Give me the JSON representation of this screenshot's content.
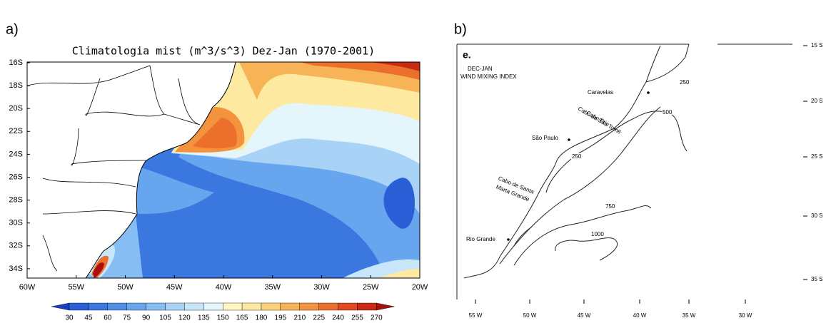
{
  "panel_a": {
    "label": "a)",
    "title": "Climatologia mist (m^3/s^3) Dez-Jan (1970-2001)",
    "lat_labels": [
      "16S",
      "18S",
      "20S",
      "22S",
      "24S",
      "26S",
      "28S",
      "30S",
      "32S",
      "34S"
    ],
    "lon_labels": [
      "60W",
      "55W",
      "50W",
      "45W",
      "40W",
      "35W",
      "30W",
      "25W",
      "20W"
    ],
    "colorbar": {
      "labels": [
        30,
        45,
        60,
        75,
        90,
        105,
        120,
        135,
        150,
        165,
        180,
        195,
        210,
        225,
        240,
        255,
        270
      ],
      "colors": [
        "#1a3fc4",
        "#2a5fd8",
        "#3a78e0",
        "#4f8fe6",
        "#67a6ee",
        "#86bdf2",
        "#a8d3f6",
        "#c8e6fa",
        "#e4f5fc",
        "#fff8c4",
        "#fde9a0",
        "#fbd27a",
        "#f7b457",
        "#f3933e",
        "#ec6f2c",
        "#e04a1e",
        "#c92a14",
        "#a8100c"
      ]
    }
  },
  "panel_b": {
    "label": "b)",
    "heading": [
      "e.",
      "DEC-JAN",
      "WIND MIXING INDEX"
    ],
    "places": [
      "Caravelas",
      "Cabo de São Tomé",
      "Cabo Frio",
      "São Paulo",
      "Cabo de Santa",
      "Marta Grande",
      "Rio Grande"
    ],
    "contour_labels": [
      "250",
      "500",
      "250",
      "750",
      "1000"
    ],
    "lat_labels": [
      "15 S",
      "20 S",
      "25 S",
      "30 S",
      "35 S"
    ],
    "lon_labels": [
      "55 W",
      "50 W",
      "45 W",
      "40 W",
      "35 W",
      "30 W"
    ]
  }
}
